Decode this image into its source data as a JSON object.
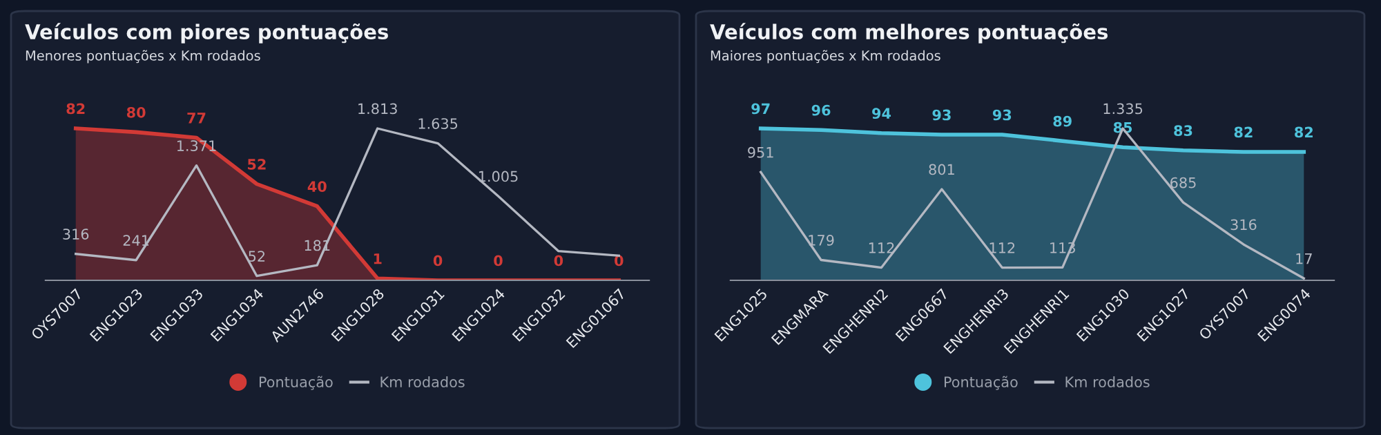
{
  "chart_data": [
    {
      "type": "area",
      "title": "Veículos com piores pontuações",
      "subtitle": "Menores pontuações x Km rodados",
      "categories": [
        "OYS7007",
        "ENG1023",
        "ENG1033",
        "ENG1034",
        "AUN2746",
        "ENG1028",
        "ENG1031",
        "ENG1024",
        "ENG1032",
        "ENG01067"
      ],
      "series": [
        {
          "name": "Pontuação",
          "color": "#d23a36",
          "values": [
            82,
            80,
            77,
            52,
            40,
            1,
            0,
            0,
            0,
            0
          ],
          "value_labels": [
            "82",
            "80",
            "77",
            "52",
            "40",
            "1",
            "0",
            "0",
            "0",
            "0"
          ]
        },
        {
          "name": "Km rodados",
          "type": "line",
          "axis": "y2",
          "color": "#b4b8c2",
          "values": [
            316,
            241,
            1371,
            52,
            181,
            1813,
            1635,
            1005,
            349,
            294
          ],
          "value_labels": [
            "316",
            "241",
            "1.371",
            "52",
            "181",
            "1.813",
            "1.635",
            "1.005",
            null,
            null
          ]
        }
      ],
      "tick_labels": "x",
      "legend": "bottom"
    },
    {
      "type": "area",
      "title": "Veículos com melhores pontuações",
      "subtitle": "Maiores pontuações x Km rodados",
      "categories": [
        "ENG1025",
        "ENGMARA",
        "ENGHENRI2",
        "ENG0667",
        "ENGHENRI3",
        "ENGHENRI1",
        "ENG1030",
        "ENG1027",
        "OYS7007",
        "ENG0074"
      ],
      "series": [
        {
          "name": "Pontuação",
          "color": "#4ec3dc",
          "values": [
            97,
            96,
            94,
            93,
            93,
            89,
            85,
            83,
            82,
            82
          ],
          "value_labels": [
            "97",
            "96",
            "94",
            "93",
            "93",
            "89",
            "85",
            "83",
            "82",
            "82"
          ]
        },
        {
          "name": "Km rodados",
          "type": "line",
          "axis": "y2",
          "color": "#b4b8c2",
          "values": [
            951,
            179,
            112,
            801,
            112,
            113,
            1335,
            685,
            316,
            17
          ],
          "value_labels": [
            "951",
            "179",
            "112",
            "801",
            "112",
            "113",
            "1.335",
            "685",
            "316",
            "17"
          ]
        }
      ],
      "tick_labels": "x",
      "legend": "bottom"
    }
  ]
}
